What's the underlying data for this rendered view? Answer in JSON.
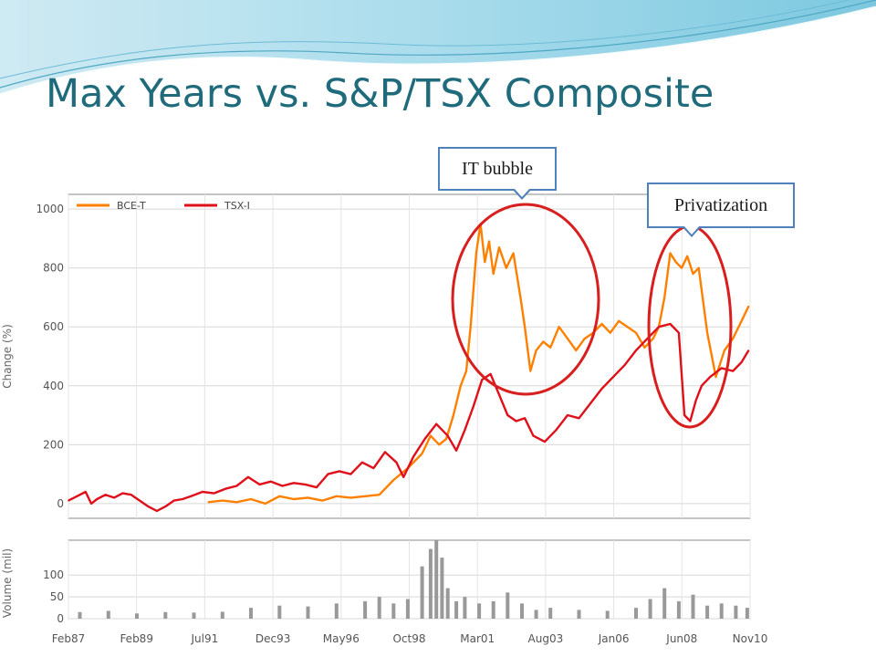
{
  "slide": {
    "title": "Max Years vs. S&P/TSX Composite"
  },
  "callouts": {
    "it_bubble": "IT bubble",
    "privatization": "Privatization"
  },
  "colors": {
    "title": "#1f6b7b",
    "bce": "#ff8000",
    "tsx": "#e0101a",
    "volume": "#999999",
    "circle": "#d91e1e",
    "callout_border": "#4f81bd"
  },
  "chart_data": [
    {
      "type": "line",
      "xlabel": "",
      "ylabel": "Change (%)",
      "ylim": [
        -50,
        1050
      ],
      "yticks": [
        0,
        200,
        400,
        600,
        800,
        1000
      ],
      "x_tick_labels": [
        "Feb87",
        "Feb89",
        "Jul91",
        "Dec93",
        "May96",
        "Oct98",
        "Mar01",
        "Aug03",
        "Jan06",
        "Jun08",
        "Nov10"
      ],
      "xlim": [
        1987.1,
        2011.0
      ],
      "grid": true,
      "legend": "top-left",
      "series": [
        {
          "name": "BCE-T",
          "color": "#ff8000",
          "x": [
            1992.0,
            1992.5,
            1993.0,
            1993.5,
            1994.0,
            1994.5,
            1995.0,
            1995.5,
            1996.0,
            1996.5,
            1997.0,
            1997.5,
            1998.0,
            1998.5,
            1999.0,
            1999.5,
            1999.8,
            2000.1,
            2000.35,
            2000.6,
            2000.85,
            2001.05,
            2001.2,
            2001.4,
            2001.55,
            2001.7,
            2001.85,
            2002.0,
            2002.2,
            2002.45,
            2002.7,
            2002.95,
            2003.1,
            2003.3,
            2003.5,
            2003.75,
            2004.0,
            2004.3,
            2004.6,
            2004.9,
            2005.2,
            2005.5,
            2005.8,
            2006.1,
            2006.4,
            2006.7,
            2007.0,
            2007.3,
            2007.6,
            2007.8,
            2008.0,
            2008.2,
            2008.4,
            2008.6,
            2008.8,
            2009.0,
            2009.2,
            2009.5,
            2009.8,
            2010.1,
            2010.4,
            2010.7,
            2010.95
          ],
          "values": [
            5,
            10,
            5,
            15,
            0,
            25,
            15,
            20,
            10,
            25,
            20,
            25,
            30,
            80,
            120,
            170,
            230,
            200,
            220,
            300,
            400,
            450,
            600,
            850,
            950,
            820,
            890,
            780,
            870,
            800,
            850,
            700,
            600,
            450,
            520,
            550,
            530,
            600,
            560,
            520,
            560,
            580,
            610,
            580,
            620,
            600,
            580,
            530,
            560,
            600,
            700,
            850,
            820,
            800,
            840,
            780,
            800,
            580,
            430,
            520,
            560,
            620,
            670
          ]
        },
        {
          "name": "TSX-I",
          "color": "#e0101a",
          "x": [
            1987.1,
            1987.4,
            1987.7,
            1987.9,
            1988.1,
            1988.4,
            1988.7,
            1989.0,
            1989.3,
            1989.6,
            1989.9,
            1990.2,
            1990.5,
            1990.8,
            1991.1,
            1991.4,
            1991.8,
            1992.2,
            1992.6,
            1993.0,
            1993.4,
            1993.8,
            1994.2,
            1994.6,
            1995.0,
            1995.4,
            1995.8,
            1996.2,
            1996.6,
            1997.0,
            1997.4,
            1997.8,
            1998.2,
            1998.6,
            1998.85,
            1999.2,
            1999.6,
            2000.0,
            2000.4,
            2000.7,
            2001.0,
            2001.3,
            2001.6,
            2001.9,
            2002.2,
            2002.5,
            2002.8,
            2003.1,
            2003.4,
            2003.8,
            2004.2,
            2004.6,
            2005.0,
            2005.4,
            2005.8,
            2006.2,
            2006.6,
            2007.0,
            2007.4,
            2007.8,
            2008.2,
            2008.5,
            2008.7,
            2008.9,
            2009.1,
            2009.3,
            2009.6,
            2010.0,
            2010.4,
            2010.7,
            2010.95
          ],
          "values": [
            10,
            25,
            40,
            0,
            15,
            30,
            20,
            35,
            30,
            10,
            -10,
            -25,
            -10,
            10,
            15,
            25,
            40,
            35,
            50,
            60,
            90,
            65,
            75,
            60,
            70,
            65,
            55,
            100,
            110,
            100,
            140,
            120,
            175,
            140,
            90,
            160,
            220,
            270,
            230,
            180,
            250,
            330,
            420,
            440,
            370,
            300,
            280,
            290,
            230,
            210,
            250,
            300,
            290,
            340,
            390,
            430,
            470,
            520,
            560,
            600,
            610,
            580,
            300,
            280,
            350,
            400,
            430,
            460,
            450,
            480,
            520
          ]
        }
      ]
    },
    {
      "type": "bar",
      "xlabel": "",
      "ylabel": "Volume (mil)",
      "ylim": [
        0,
        180
      ],
      "yticks": [
        0,
        50,
        100
      ],
      "x_tick_labels": [
        "Feb87",
        "Feb89",
        "Jul91",
        "Dec93",
        "May96",
        "Oct98",
        "Mar01",
        "Aug03",
        "Jan06",
        "Jun08",
        "Nov10"
      ],
      "grid": true,
      "series": [
        {
          "color": "#999999",
          "x": [
            1987.5,
            1988.5,
            1989.5,
            1990.5,
            1991.5,
            1992.5,
            1993.5,
            1994.5,
            1995.5,
            1996.5,
            1997.5,
            1998.0,
            1998.5,
            1999.0,
            1999.5,
            1999.8,
            2000.0,
            2000.2,
            2000.4,
            2000.7,
            2001.0,
            2001.5,
            2002.0,
            2002.5,
            2003.0,
            2003.5,
            2004.0,
            2005.0,
            2006.0,
            2007.0,
            2007.5,
            2008.0,
            2008.5,
            2009.0,
            2009.5,
            2010.0,
            2010.5,
            2010.9
          ],
          "values": [
            15,
            18,
            12,
            15,
            14,
            16,
            25,
            30,
            28,
            35,
            40,
            50,
            35,
            45,
            120,
            160,
            180,
            140,
            70,
            40,
            50,
            35,
            40,
            60,
            35,
            20,
            25,
            20,
            18,
            25,
            45,
            70,
            40,
            55,
            30,
            35,
            30,
            25
          ]
        }
      ]
    }
  ]
}
